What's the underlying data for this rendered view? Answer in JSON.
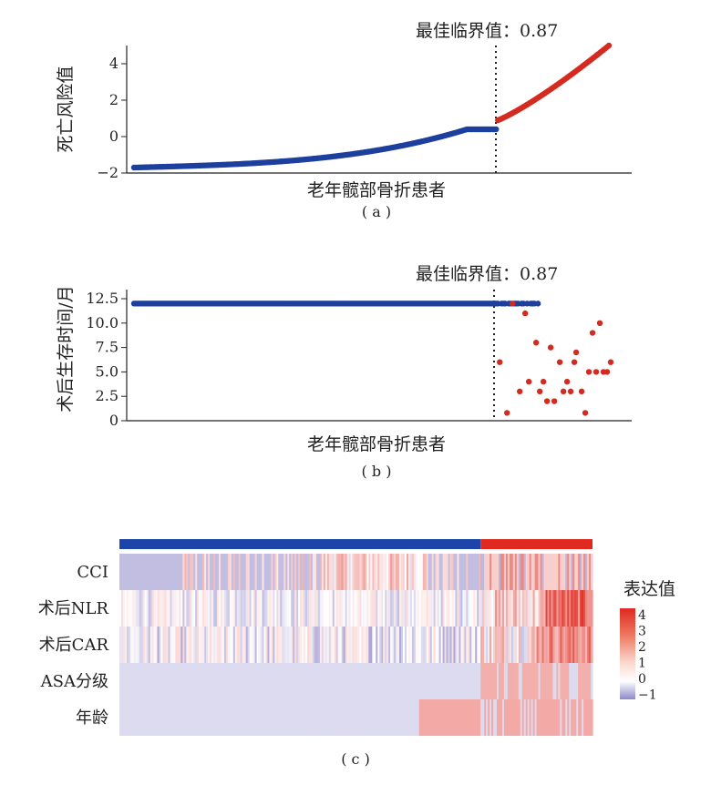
{
  "colors": {
    "low": "#3c5fb0",
    "high": "#d42a20",
    "line": "#1d3f9e",
    "hm_low": "#8f88c8",
    "hm_mid": "#ffffff",
    "hm_high": "#e02a20"
  },
  "chart_data": [
    {
      "id": "a",
      "type": "scatter",
      "panel_label": "( a )",
      "xlabel": "老年髋部骨折患者",
      "ylabel": "死亡风险值",
      "cutoff_label": "最佳临界值：0.87",
      "ylim": [
        -2,
        5
      ],
      "yticks": [
        -2,
        0,
        2,
        4
      ],
      "n_low": 200,
      "n_high": 62,
      "low_values_start": -1.7,
      "low_values_end": 0.4,
      "high_values_start": 0.9,
      "high_values_end": 5.0
    },
    {
      "id": "b",
      "type": "scatter",
      "panel_label": "( b )",
      "xlabel": "老年髋部骨折患者",
      "ylabel": "术后生存时间/月",
      "cutoff_label": "最佳临界值：0.87",
      "ylim": [
        0,
        12.5
      ],
      "yticks": [
        "0",
        "2.5",
        "5.0",
        "7.5",
        "10.0",
        "12.5"
      ],
      "survival_censored_value": 12,
      "events": [
        [
          201,
          6.0
        ],
        [
          205,
          0.8
        ],
        [
          208,
          12.0
        ],
        [
          212,
          3.0
        ],
        [
          215,
          11.0
        ],
        [
          217,
          4.0
        ],
        [
          221,
          8.0
        ],
        [
          223,
          3.0
        ],
        [
          225,
          4.0
        ],
        [
          227,
          2.0
        ],
        [
          229,
          7.5
        ],
        [
          231,
          2.0
        ],
        [
          234,
          6.0
        ],
        [
          236,
          3.0
        ],
        [
          238,
          4.0
        ],
        [
          240,
          3.0
        ],
        [
          242,
          6.0
        ],
        [
          243,
          7.0
        ],
        [
          246,
          3.0
        ],
        [
          248,
          0.8
        ],
        [
          250,
          5.0
        ],
        [
          252,
          9.0
        ],
        [
          254,
          5.0
        ],
        [
          256,
          10.0
        ],
        [
          258,
          5.0
        ],
        [
          260,
          5.0
        ],
        [
          262,
          6.0
        ]
      ]
    },
    {
      "id": "c",
      "type": "heatmap",
      "panel_label": "( c )",
      "rows": [
        "CCI",
        "术后NLR",
        "术后CAR",
        "ASA分级",
        "年龄"
      ],
      "legend_title": "表达值",
      "legend_ticks": [
        "4",
        "3",
        "2",
        "1",
        "0",
        "−1"
      ],
      "value_range": [
        -1,
        4
      ],
      "n_columns": 262,
      "n_low": 200
    }
  ]
}
